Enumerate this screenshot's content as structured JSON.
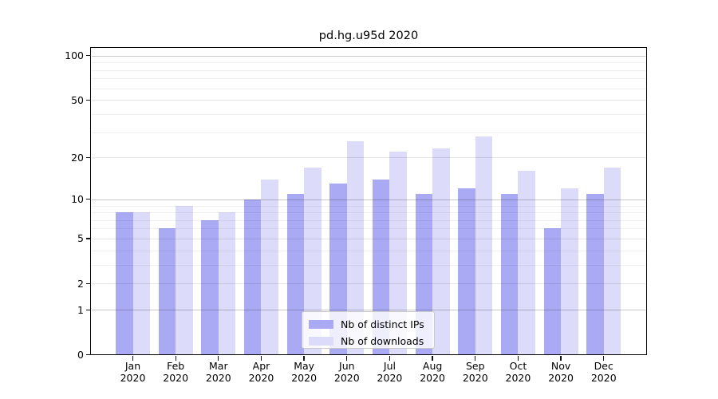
{
  "chart_data": {
    "type": "bar",
    "title": "pd.hg.u95d 2020",
    "categories": [
      "Jan 2020",
      "Feb 2020",
      "Mar 2020",
      "Apr 2020",
      "May 2020",
      "Jun 2020",
      "Jul 2020",
      "Aug 2020",
      "Sep 2020",
      "Oct 2020",
      "Nov 2020",
      "Dec 2020"
    ],
    "x_tick_labels": [
      [
        "Jan",
        "2020"
      ],
      [
        "Feb",
        "2020"
      ],
      [
        "Mar",
        "2020"
      ],
      [
        "Apr",
        "2020"
      ],
      [
        "May",
        "2020"
      ],
      [
        "Jun",
        "2020"
      ],
      [
        "Jul",
        "2020"
      ],
      [
        "Aug",
        "2020"
      ],
      [
        "Sep",
        "2020"
      ],
      [
        "Oct",
        "2020"
      ],
      [
        "Nov",
        "2020"
      ],
      [
        "Dec",
        "2020"
      ]
    ],
    "series": [
      {
        "name": "Nb of distinct IPs",
        "color": "#a9a9f4",
        "values": [
          8,
          6,
          7,
          10,
          11,
          13,
          14,
          11,
          12,
          11,
          6,
          11
        ]
      },
      {
        "name": "Nb of downloads",
        "color": "#dcdcfa",
        "values": [
          8,
          9,
          8,
          14,
          17,
          26,
          22,
          23,
          28,
          16,
          12,
          17
        ]
      }
    ],
    "y_axis": {
      "scale": "log1p",
      "tick_values": [
        0,
        1,
        2,
        5,
        10,
        20,
        50,
        100
      ],
      "major_gridlines": [
        1,
        10,
        100
      ],
      "minor_gridlines": [
        2,
        3,
        4,
        5,
        6,
        7,
        8,
        9,
        20,
        30,
        40,
        50,
        60,
        70,
        80,
        90
      ],
      "range": [
        0,
        112
      ],
      "grid": true
    },
    "legend": {
      "items": [
        "Nb of distinct IPs",
        "Nb of downloads"
      ],
      "position": "lower-center"
    }
  },
  "colors": {
    "bar_ips": "#a9a9f4",
    "bar_downloads": "#dcdcfa",
    "grid_major": "rgba(0,0,0,0.22)",
    "grid_minor_labeled": "rgba(0,0,0,0.10)",
    "grid_minor": "rgba(0,0,0,0.06)",
    "spine": "#000000"
  }
}
